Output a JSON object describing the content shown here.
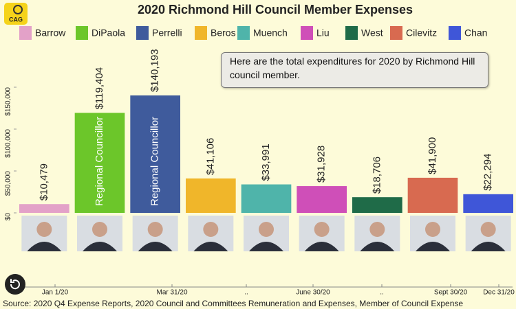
{
  "chart_data": {
    "type": "bar",
    "title": "2020 Richmond Hill Council Member Expenses",
    "logo": "CAG",
    "categories": [
      "Barrow",
      "DiPaola",
      "Perrelli",
      "Beros",
      "Muench",
      "Liu",
      "West",
      "Cilevitz",
      "Chan"
    ],
    "values": [
      10479,
      119404,
      140193,
      41106,
      33991,
      31928,
      18706,
      41900,
      22294
    ],
    "value_labels": [
      "$10,479",
      "$119,404",
      "$140,193",
      "$41,106",
      "$33,991",
      "$31,928",
      "$18,706",
      "$41,900",
      "$22,294"
    ],
    "colors": [
      "#e3a1c8",
      "#6cc62a",
      "#3f5b9c",
      "#f0b62a",
      "#4fb4aa",
      "#cf4fb8",
      "#1f6b48",
      "#d86a50",
      "#3f56d8"
    ],
    "bar_labels": [
      null,
      "Regional Councillor",
      "Regional Councillor",
      null,
      null,
      null,
      null,
      null,
      null
    ],
    "ylim": [
      0,
      150000
    ],
    "yticks": [
      {
        "value": 0,
        "label": "$0"
      },
      {
        "value": 50000,
        "label": "$50,000"
      },
      {
        "value": 100000,
        "label": "$100,000"
      },
      {
        "value": 150000,
        "label": "$150,000"
      }
    ],
    "grid": false,
    "annotation": "Here are the total expenditures for 2020 by Richmond Hill council member.",
    "timeline": [
      "Jan 1/20",
      "Mar 31/20",
      "..",
      "June 30/20",
      "..",
      "Sept 30/20",
      "Dec 31/20"
    ],
    "source": "Source: 2020 Q4 Expense Reports, 2020 Council and Committees Remuneration and Expenses, Member of Council Expense"
  }
}
